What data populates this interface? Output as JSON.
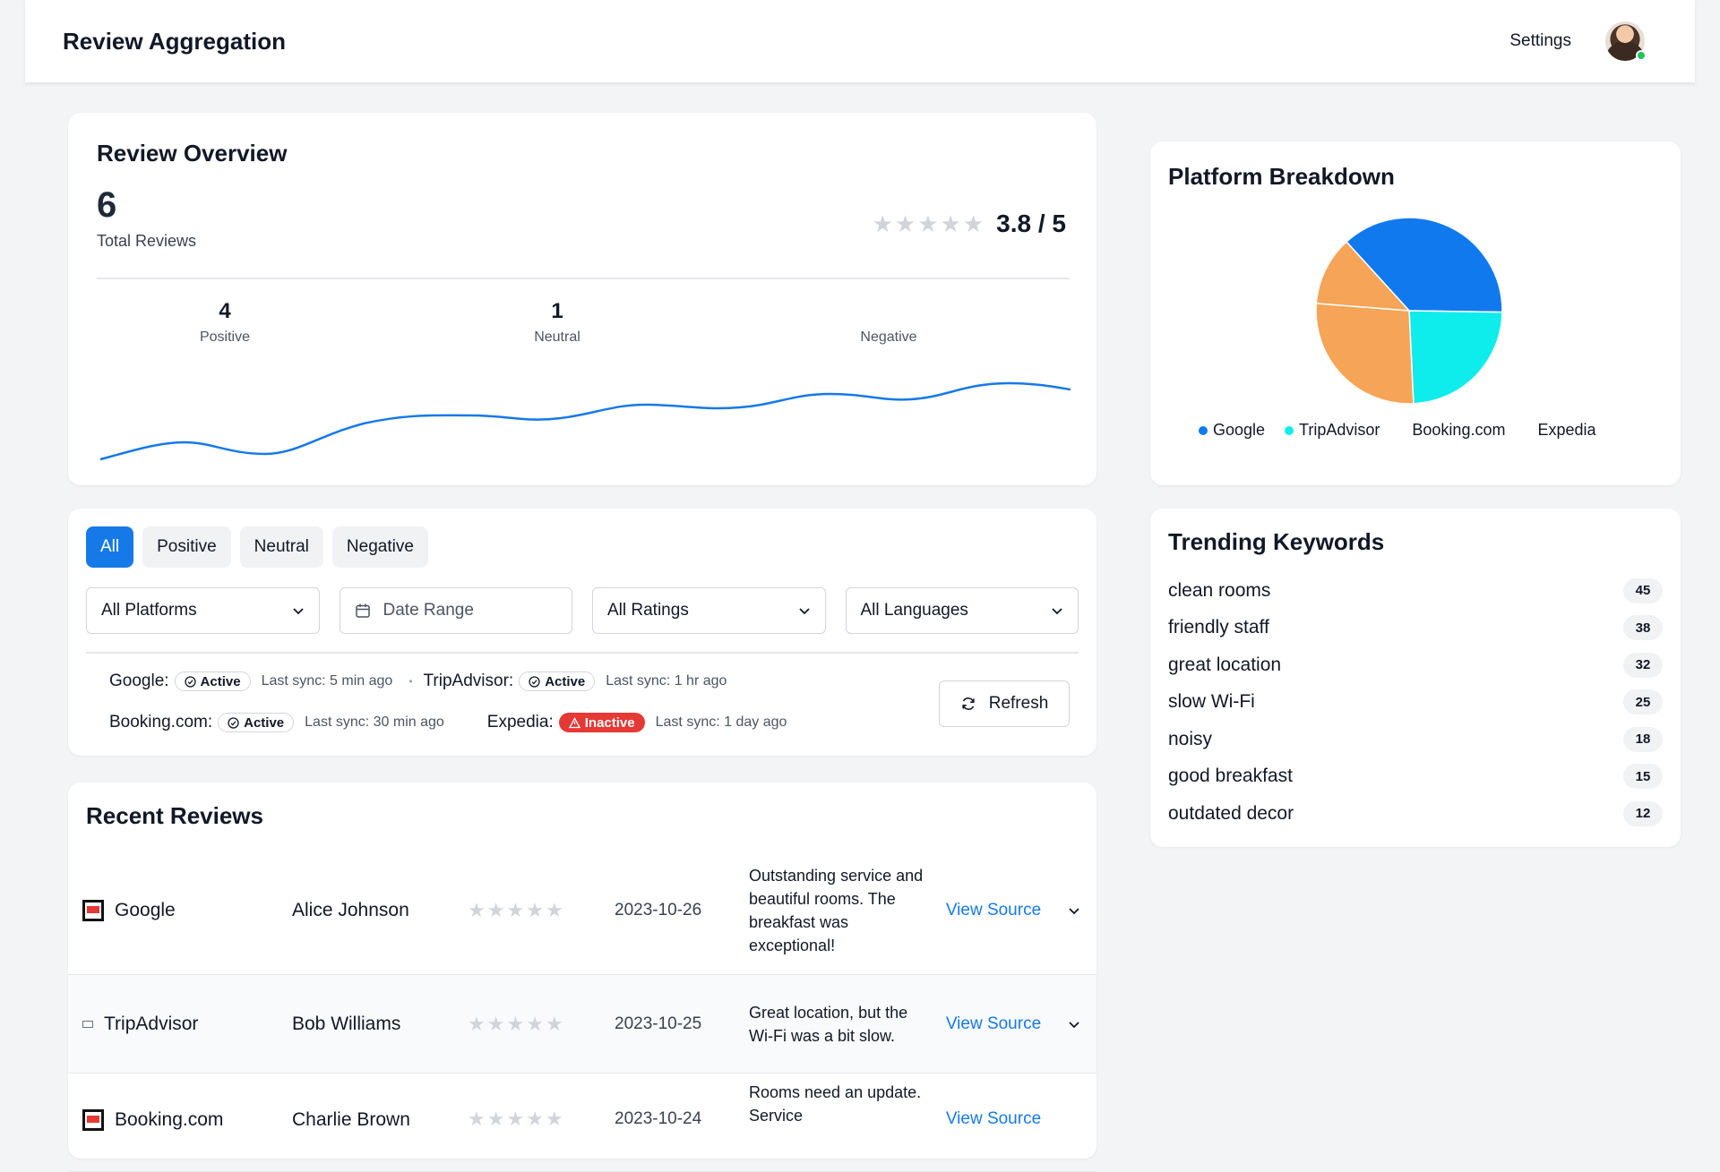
{
  "header": {
    "title": "Review Aggregation",
    "settings_label": "Settings"
  },
  "overview": {
    "title": "Review Overview",
    "total_value": "6",
    "total_label": "Total Reviews",
    "rating_text": "3.8 / 5",
    "positive": {
      "count": "4",
      "label": "Positive"
    },
    "neutral": {
      "count": "1",
      "label": "Neutral"
    },
    "negative": {
      "count": "",
      "label": "Negative"
    }
  },
  "filters": {
    "chips": [
      "All",
      "Positive",
      "Neutral",
      "Negative"
    ],
    "active_chip": "All",
    "platform_select": "All Platforms",
    "date_range": "Date Range",
    "rating_select": "All Ratings",
    "language_select": "All Languages",
    "refresh_label": "Refresh",
    "sync": [
      {
        "platform": "Google:",
        "status": "Active",
        "time": "Last sync: 5 min ago"
      },
      {
        "platform": "TripAdvisor:",
        "status": "Active",
        "time": "Last sync: 1 hr ago"
      },
      {
        "platform": "Booking.com:",
        "status": "Active",
        "time": "Last sync: 30 min ago"
      },
      {
        "platform": "Expedia:",
        "status": "Inactive",
        "time": "Last sync: 1 day ago"
      }
    ]
  },
  "recent": {
    "title": "Recent Reviews",
    "view_label": "View Source",
    "rows": [
      {
        "platform": "Google",
        "author": "Alice Johnson",
        "date": "2023-10-26",
        "text": "Outstanding service and beautiful rooms. The breakfast was exceptional!"
      },
      {
        "platform": "TripAdvisor",
        "author": "Bob Williams",
        "date": "2023-10-25",
        "text": "Great location, but the Wi-Fi was a bit slow."
      },
      {
        "platform": "Booking.com",
        "author": "Charlie Brown",
        "date": "2023-10-24",
        "text": "Rooms need an update. Service"
      }
    ]
  },
  "breakdown": {
    "title": "Platform Breakdown",
    "legend": [
      "Google",
      "TripAdvisor",
      "Booking.com",
      "Expedia"
    ],
    "colors": {
      "google": "#1179ee",
      "tripadvisor": "#0fecec",
      "booking": "#f6a457",
      "expedia": "#f6a457",
      "primary": "#1679e8",
      "inactive": "#e53935"
    }
  },
  "chart_data": {
    "type": "pie",
    "categories": [
      "Google",
      "TripAdvisor",
      "Booking.com",
      "Expedia"
    ],
    "values": [
      37,
      24,
      27,
      12
    ]
  },
  "keywords": {
    "title": "Trending Keywords",
    "items": [
      {
        "label": "clean rooms",
        "count": "45"
      },
      {
        "label": "friendly staff",
        "count": "38"
      },
      {
        "label": "great location",
        "count": "32"
      },
      {
        "label": "slow Wi-Fi",
        "count": "25"
      },
      {
        "label": "noisy",
        "count": "18"
      },
      {
        "label": "good breakfast",
        "count": "15"
      },
      {
        "label": "outdated decor",
        "count": "12"
      }
    ]
  }
}
